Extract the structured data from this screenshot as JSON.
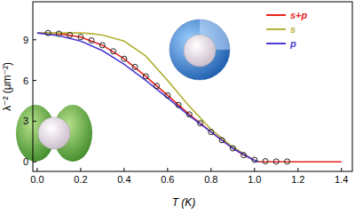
{
  "chart_data": {
    "type": "line",
    "x_label": "T (K)",
    "y_label": "λ⁻² (μm⁻²)",
    "xlim": [
      -0.02,
      1.45
    ],
    "ylim": [
      -0.7,
      11.8
    ],
    "xticks": [
      {
        "value": 0,
        "label": "0.0"
      },
      0.2,
      0.4,
      0.6,
      0.8,
      {
        "value": 1,
        "label": "1.0"
      },
      1.2,
      1.4
    ],
    "yticks": [
      0,
      3,
      6,
      9
    ],
    "legend": "top-right",
    "series": [
      {
        "type": "scatter",
        "color": "#222222",
        "marker": "circle",
        "x": [
          0.05,
          0.1,
          0.15,
          0.2,
          0.25,
          0.3,
          0.35,
          0.4,
          0.45,
          0.5,
          0.55,
          0.6,
          0.65,
          0.7,
          0.75,
          0.8,
          0.85,
          0.9,
          0.95,
          1.0,
          1.05,
          1.1,
          1.15
        ],
        "values": [
          9.5,
          9.45,
          9.35,
          9.2,
          8.95,
          8.6,
          8.15,
          7.6,
          7.0,
          6.3,
          5.6,
          4.9,
          4.2,
          3.5,
          2.85,
          2.2,
          1.6,
          1.0,
          0.5,
          0.15,
          0.05,
          0.03,
          0.03
        ]
      },
      {
        "name": "s+p",
        "type": "line",
        "color": "#e8231f",
        "x": [
          0,
          0.1,
          0.2,
          0.3,
          0.4,
          0.5,
          0.6,
          0.7,
          0.8,
          0.9,
          0.95,
          1.0,
          1.02,
          1.4
        ],
        "values": [
          9.5,
          9.45,
          9.2,
          8.6,
          7.6,
          6.3,
          4.9,
          3.5,
          2.2,
          1.0,
          0.5,
          0.12,
          0,
          0
        ]
      },
      {
        "name": "s",
        "type": "line",
        "color": "#b5b23a",
        "x": [
          0,
          0.2,
          0.25,
          0.3,
          0.4,
          0.5,
          0.6,
          0.7,
          0.8,
          0.9,
          1.0,
          1.02
        ],
        "values": [
          9.5,
          9.5,
          9.45,
          9.35,
          8.9,
          7.8,
          6.0,
          4.1,
          2.4,
          1.1,
          0.1,
          0
        ]
      },
      {
        "name": "p",
        "type": "line",
        "color": "#4b3bd6",
        "x": [
          0,
          0.1,
          0.2,
          0.3,
          0.4,
          0.5,
          0.6,
          0.7,
          0.8,
          0.9,
          1.0,
          1.02
        ],
        "values": [
          9.5,
          9.3,
          8.9,
          8.2,
          7.2,
          6.0,
          4.7,
          3.4,
          2.2,
          1.0,
          0.1,
          0
        ]
      }
    ]
  }
}
